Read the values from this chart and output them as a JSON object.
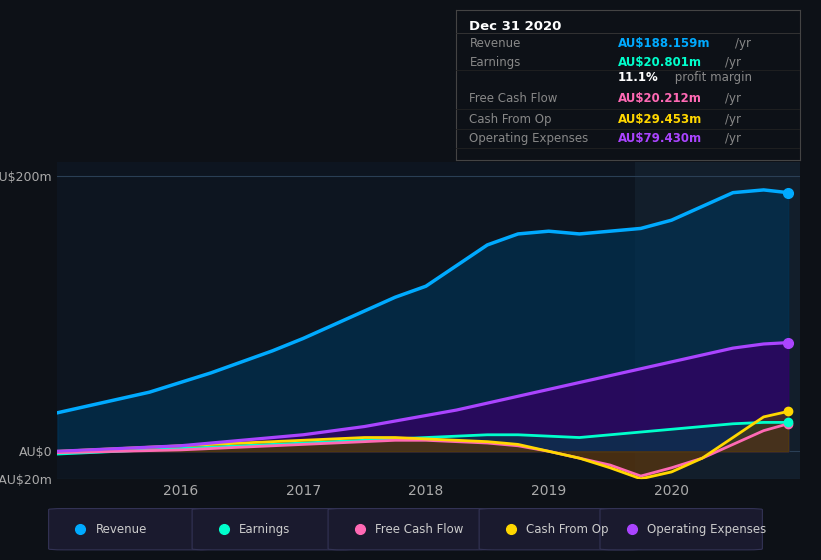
{
  "bg_color": "#0d1117",
  "plot_bg_color": "#0d1520",
  "title_box": {
    "date": "Dec 31 2020",
    "rows": [
      {
        "label": "Revenue",
        "value": "AU$188.159m",
        "unit": "/yr",
        "value_color": "#00aaff"
      },
      {
        "label": "Earnings",
        "value": "AU$20.801m",
        "unit": "/yr",
        "value_color": "#00ffcc"
      },
      {
        "label": "",
        "value": "11.1%",
        "unit": " profit margin",
        "value_color": "#ffffff"
      },
      {
        "label": "Free Cash Flow",
        "value": "AU$20.212m",
        "unit": "/yr",
        "value_color": "#ff69b4"
      },
      {
        "label": "Cash From Op",
        "value": "AU$29.453m",
        "unit": "/yr",
        "value_color": "#ffd700"
      },
      {
        "label": "Operating Expenses",
        "value": "AU$79.430m",
        "unit": "/yr",
        "value_color": "#aa44ff"
      }
    ]
  },
  "ylim": [
    -20,
    210
  ],
  "years": [
    2015.0,
    2015.25,
    2015.5,
    2015.75,
    2016.0,
    2016.25,
    2016.5,
    2016.75,
    2017.0,
    2017.25,
    2017.5,
    2017.75,
    2018.0,
    2018.25,
    2018.5,
    2018.75,
    2019.0,
    2019.25,
    2019.5,
    2019.75,
    2020.0,
    2020.25,
    2020.5,
    2020.75,
    2020.95
  ],
  "revenue": [
    28,
    33,
    38,
    43,
    50,
    57,
    65,
    73,
    82,
    92,
    102,
    112,
    120,
    135,
    150,
    158,
    160,
    158,
    160,
    162,
    168,
    178,
    188,
    190,
    188
  ],
  "earnings": [
    -2,
    -1,
    0,
    1,
    2,
    3,
    4,
    5,
    6,
    7,
    8,
    9,
    10,
    11,
    12,
    12,
    11,
    10,
    12,
    14,
    16,
    18,
    20,
    21,
    21
  ],
  "free_cash": [
    -1,
    -0.5,
    0,
    0.5,
    1,
    2,
    3,
    4,
    5,
    6,
    7,
    8,
    8,
    7,
    6,
    4,
    0,
    -5,
    -10,
    -18,
    -12,
    -5,
    5,
    15,
    20
  ],
  "cash_from_op": [
    0,
    1,
    2,
    3,
    4,
    5,
    6,
    7,
    8,
    9,
    10,
    10,
    9,
    8,
    7,
    5,
    0,
    -5,
    -12,
    -20,
    -15,
    -5,
    10,
    25,
    29
  ],
  "op_expenses": [
    0,
    1,
    2,
    3,
    4,
    6,
    8,
    10,
    12,
    15,
    18,
    22,
    26,
    30,
    35,
    40,
    45,
    50,
    55,
    60,
    65,
    70,
    75,
    78,
    79
  ],
  "revenue_color": "#00aaff",
  "earnings_color": "#00ffcc",
  "free_cash_color": "#ff69b4",
  "cash_from_op_color": "#ffd700",
  "op_expenses_color": "#aa44ff",
  "revenue_fill": "#003355",
  "earnings_fill": "#004444",
  "free_cash_fill": "#551133",
  "cash_from_op_fill": "#554400",
  "op_expenses_fill": "#330066",
  "legend_items": [
    "Revenue",
    "Earnings",
    "Free Cash Flow",
    "Cash From Op",
    "Operating Expenses"
  ],
  "legend_colors": [
    "#00aaff",
    "#00ffcc",
    "#ff69b4",
    "#ffd700",
    "#aa44ff"
  ]
}
